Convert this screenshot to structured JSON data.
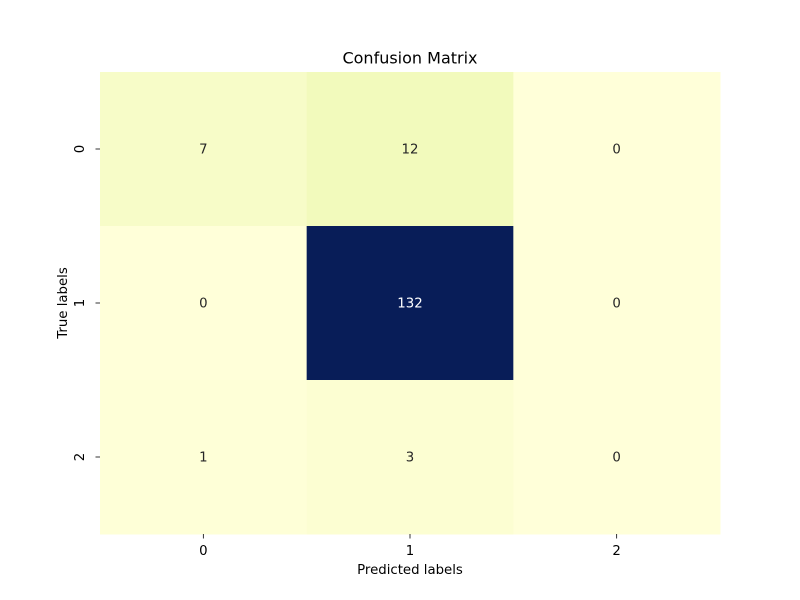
{
  "chart_data": {
    "type": "heatmap",
    "title": "Confusion Matrix",
    "xlabel": "Predicted labels",
    "ylabel": "True labels",
    "x_categories": [
      "0",
      "1",
      "2"
    ],
    "y_categories": [
      "0",
      "1",
      "2"
    ],
    "values": [
      [
        7,
        12,
        0
      ],
      [
        0,
        132,
        0
      ],
      [
        1,
        3,
        0
      ]
    ],
    "colormap": "YlGnBu",
    "vmin": 0,
    "vmax": 132,
    "colorbar": false,
    "annotated": true
  }
}
